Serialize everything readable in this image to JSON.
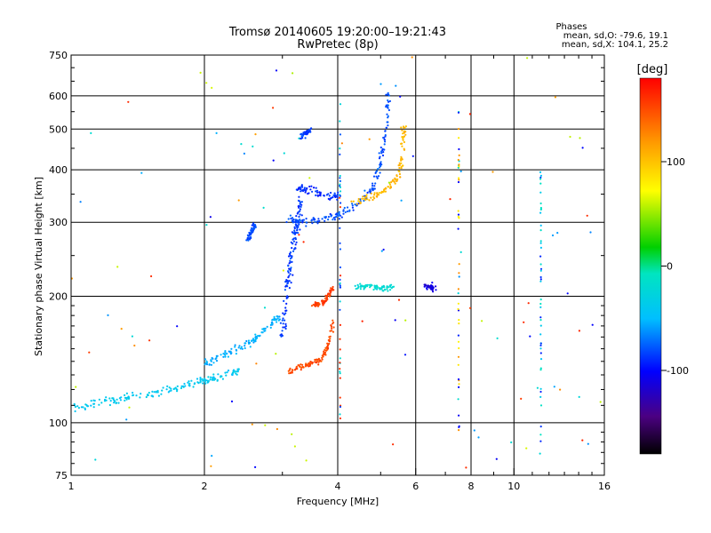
{
  "chart_data": {
    "type": "scatter",
    "title": "Tromsø 20140605 19:20:00–19:21:43",
    "subtitle": "RwPretec (8p)",
    "xlabel": "Frequency [MHz]",
    "ylabel": "Stationary phase Virtual Height [km]",
    "x_scale": "log",
    "y_scale": "log",
    "xlim": [
      1,
      16
    ],
    "ylim": [
      75,
      750
    ],
    "x_ticks": [
      1,
      2,
      4,
      6,
      8,
      10,
      16
    ],
    "y_ticks": [
      75,
      100,
      200,
      300,
      400,
      500,
      600,
      750
    ],
    "grid": true,
    "phase_box": {
      "heading": "Phases",
      "line1": "mean, sd,O: -79.6, 19.1",
      "line2": "mean, sd,X: 104.1, 25.2"
    },
    "colorbar": {
      "label": "[deg]",
      "range": [
        -180,
        180
      ],
      "ticks": [
        -100,
        0,
        100
      ],
      "colormap": "rainbow"
    },
    "traces": [
      {
        "name": "",
        "phase": -80,
        "spread": 0.012,
        "x": [
          3.1,
          3.3,
          3.6,
          4.0,
          4.4,
          4.8,
          5.0,
          5.15,
          5.2
        ],
        "y": [
          305,
          300,
          303,
          310,
          330,
          360,
          420,
          500,
          620
        ]
      },
      {
        "name": "",
        "phase": -90,
        "spread": 0.015,
        "x": [
          3.25,
          3.4,
          3.7,
          4.0
        ],
        "y": [
          360,
          360,
          350,
          345
        ]
      },
      {
        "name": "",
        "phase": -85,
        "spread": 0.018,
        "x": [
          3.0,
          3.05,
          3.1,
          3.15,
          3.2,
          3.25,
          3.3
        ],
        "y": [
          160,
          190,
          220,
          250,
          280,
          300,
          340
        ]
      },
      {
        "name": "",
        "phase": 105,
        "spread": 0.012,
        "x": [
          4.3,
          4.8,
          5.2,
          5.5,
          5.6,
          5.65
        ],
        "y": [
          335,
          345,
          360,
          390,
          450,
          520
        ]
      },
      {
        "name": "",
        "phase": -40,
        "spread": 0.014,
        "x": [
          1.0,
          1.15,
          1.3,
          1.5,
          1.7,
          1.9,
          2.05,
          2.2,
          2.4
        ],
        "y": [
          108,
          112,
          114,
          117,
          120,
          124,
          127,
          130,
          132
        ]
      },
      {
        "name": "",
        "phase": -55,
        "spread": 0.014,
        "x": [
          2.0,
          2.2,
          2.4,
          2.6,
          2.8,
          2.95
        ],
        "y": [
          138,
          145,
          150,
          158,
          170,
          180
        ]
      },
      {
        "name": "",
        "phase": 150,
        "spread": 0.01,
        "x": [
          3.1,
          3.3,
          3.5,
          3.7,
          3.8,
          3.9
        ],
        "y": [
          132,
          136,
          139,
          142,
          152,
          175
        ]
      },
      {
        "name": "",
        "phase": 155,
        "spread": 0.01,
        "x": [
          3.5,
          3.7,
          3.8,
          3.9
        ],
        "y": [
          190,
          192,
          200,
          210
        ]
      },
      {
        "name": "",
        "phase": -80,
        "spread": 0.01,
        "x": [
          2.5,
          2.55,
          2.6
        ],
        "y": [
          270,
          285,
          295
        ]
      },
      {
        "name": "",
        "phase": -20,
        "spread": 0.01,
        "x": [
          4.4,
          4.7,
          5.0,
          5.4
        ],
        "y": [
          210,
          212,
          209,
          210
        ]
      },
      {
        "name": "",
        "phase": -85,
        "spread": 0.01,
        "x": [
          3.3,
          3.4,
          3.5
        ],
        "y": [
          480,
          490,
          500
        ]
      },
      {
        "name": "",
        "phase": -110,
        "spread": 0.01,
        "x": [
          6.3,
          6.5,
          6.6
        ],
        "y": [
          210,
          212,
          209
        ]
      }
    ],
    "columns": [
      {
        "x": 7.5,
        "y": [
          95,
          620
        ],
        "phases": [
          -100,
          -20,
          120,
          80
        ]
      },
      {
        "x": 11.5,
        "y": [
          90,
          400
        ],
        "phases": [
          -90,
          -40,
          -10
        ]
      },
      {
        "x": 4.05,
        "y": [
          100,
          640
        ],
        "phases": [
          -80,
          -20,
          160
        ]
      }
    ],
    "scatter_phases": [
      -100,
      -60,
      -20,
      60,
      120,
      160
    ],
    "n_scatter": 110
  }
}
